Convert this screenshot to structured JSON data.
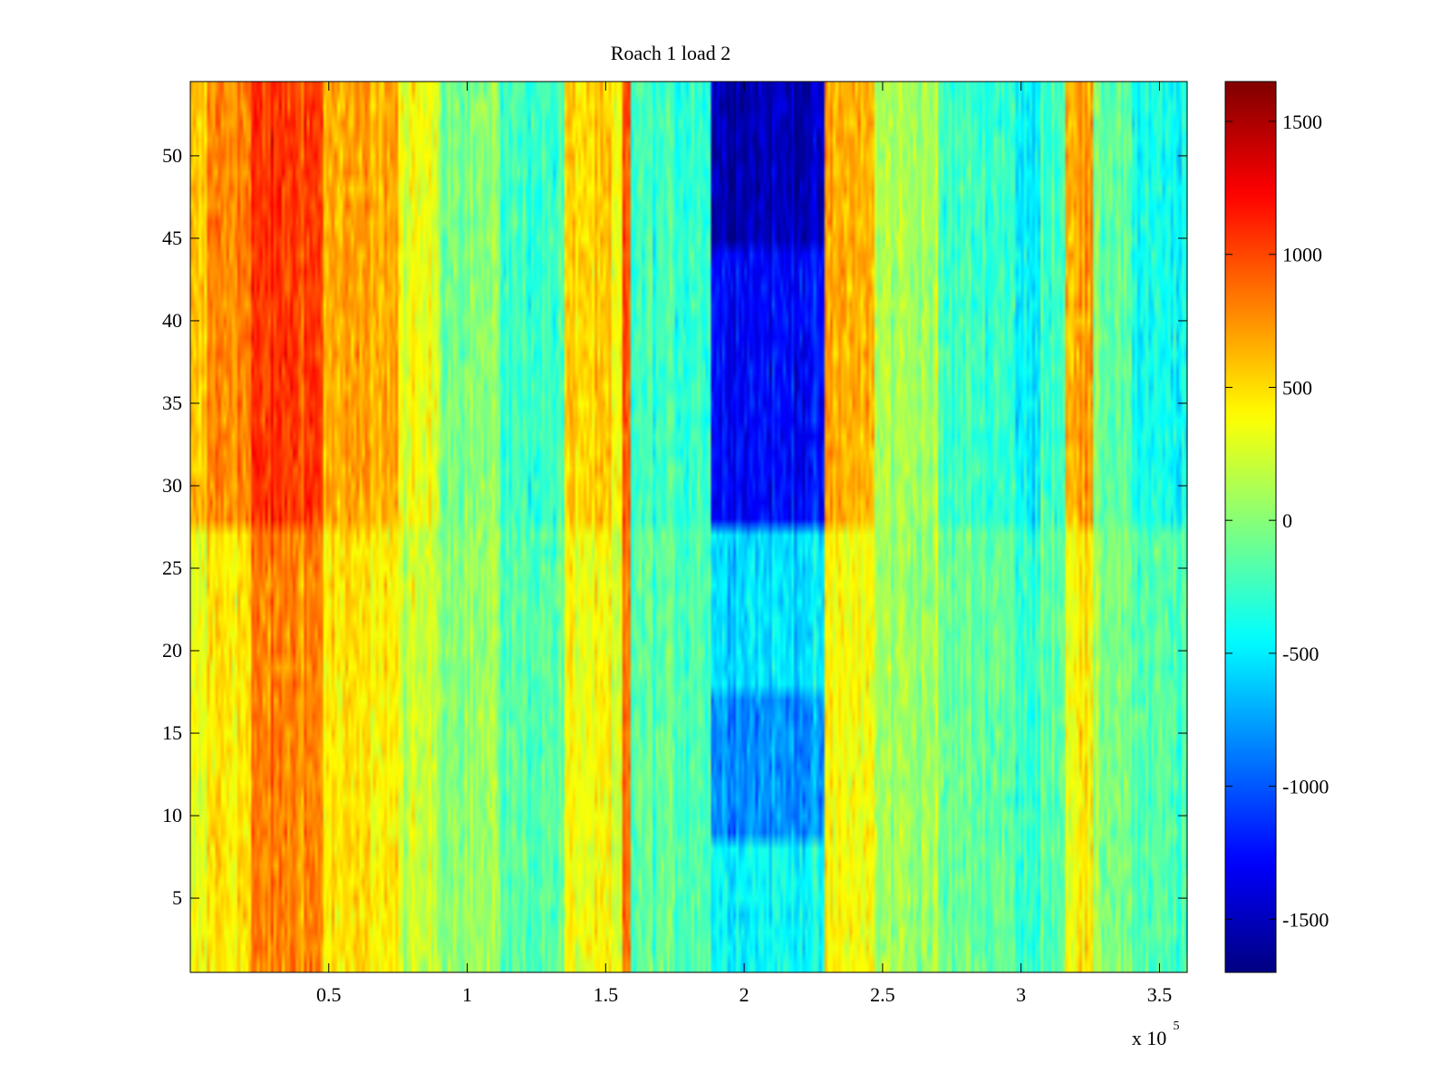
{
  "chart_data": {
    "type": "heatmap",
    "title": "Roach 1 load 2",
    "xlabel": "",
    "ylabel": "",
    "x_exponent_label": {
      "base": "x 10",
      "exponent": "5"
    },
    "xlim": [
      0,
      3.6
    ],
    "ylim": [
      0.5,
      54.5
    ],
    "x_ticks": [
      {
        "value": 0.5,
        "label": "0.5"
      },
      {
        "value": 1,
        "label": "1"
      },
      {
        "value": 1.5,
        "label": "1.5"
      },
      {
        "value": 2,
        "label": "2"
      },
      {
        "value": 2.5,
        "label": "2.5"
      },
      {
        "value": 3,
        "label": "3"
      },
      {
        "value": 3.5,
        "label": "3.5"
      }
    ],
    "y_ticks": [
      {
        "value": 5,
        "label": "5"
      },
      {
        "value": 10,
        "label": "10"
      },
      {
        "value": 15,
        "label": "15"
      },
      {
        "value": 20,
        "label": "20"
      },
      {
        "value": 25,
        "label": "25"
      },
      {
        "value": 30,
        "label": "30"
      },
      {
        "value": 35,
        "label": "35"
      },
      {
        "value": 40,
        "label": "40"
      },
      {
        "value": 45,
        "label": "45"
      },
      {
        "value": 50,
        "label": "50"
      }
    ],
    "rows": 54,
    "columns": 360,
    "colormap": "jet",
    "colorbar": {
      "min": -1700,
      "max": 1650,
      "ticks": [
        {
          "value": 1500,
          "label": "1500"
        },
        {
          "value": 1000,
          "label": "1000"
        },
        {
          "value": 500,
          "label": "500"
        },
        {
          "value": 0,
          "label": "0"
        },
        {
          "value": -500,
          "label": "-500"
        },
        {
          "value": -1000,
          "label": "-1000"
        },
        {
          "value": -1500,
          "label": "-1500"
        }
      ]
    },
    "vertical_bands": [
      {
        "x_start": 0.0,
        "x_end": 0.06,
        "low_rows_value": 280,
        "high_rows_value": 550
      },
      {
        "x_start": 0.06,
        "x_end": 0.22,
        "low_rows_value": 480,
        "high_rows_value": 800
      },
      {
        "x_start": 0.22,
        "x_end": 0.48,
        "low_rows_value": 800,
        "high_rows_value": 1050
      },
      {
        "x_start": 0.48,
        "x_end": 0.62,
        "low_rows_value": 450,
        "high_rows_value": 650
      },
      {
        "x_start": 0.62,
        "x_end": 0.75,
        "low_rows_value": 450,
        "high_rows_value": 680
      },
      {
        "x_start": 0.75,
        "x_end": 0.9,
        "low_rows_value": 200,
        "high_rows_value": 320
      },
      {
        "x_start": 0.9,
        "x_end": 1.12,
        "low_rows_value": 50,
        "high_rows_value": 0
      },
      {
        "x_start": 1.12,
        "x_end": 1.35,
        "low_rows_value": -150,
        "high_rows_value": -250
      },
      {
        "x_start": 1.35,
        "x_end": 1.52,
        "low_rows_value": 350,
        "high_rows_value": 520
      },
      {
        "x_start": 1.52,
        "x_end": 1.56,
        "low_rows_value": 200,
        "high_rows_value": 300
      },
      {
        "x_start": 1.56,
        "x_end": 1.59,
        "low_rows_value": 850,
        "high_rows_value": 950
      },
      {
        "x_start": 1.59,
        "x_end": 1.88,
        "low_rows_value": -150,
        "high_rows_value": -250
      },
      {
        "x_start": 1.88,
        "x_end": 2.29,
        "low_rows_value": -620,
        "high_rows_value": -1350
      },
      {
        "x_start": 2.29,
        "x_end": 2.47,
        "low_rows_value": 380,
        "high_rows_value": 650
      },
      {
        "x_start": 2.47,
        "x_end": 2.7,
        "low_rows_value": 80,
        "high_rows_value": 120
      },
      {
        "x_start": 2.7,
        "x_end": 2.98,
        "low_rows_value": -100,
        "high_rows_value": -250
      },
      {
        "x_start": 2.98,
        "x_end": 3.07,
        "low_rows_value": -300,
        "high_rows_value": -500
      },
      {
        "x_start": 3.07,
        "x_end": 3.16,
        "low_rows_value": -100,
        "high_rows_value": -200
      },
      {
        "x_start": 3.16,
        "x_end": 3.26,
        "low_rows_value": 420,
        "high_rows_value": 700
      },
      {
        "x_start": 3.26,
        "x_end": 3.4,
        "low_rows_value": 0,
        "high_rows_value": -100
      },
      {
        "x_start": 3.4,
        "x_end": 3.6,
        "low_rows_value": -200,
        "high_rows_value": -420
      }
    ],
    "row_breakpoint": 27,
    "notes": "Value at each cell = band value (low_rows_value for rows 1-27, high_rows_value for rows 28-54) plus noise; blue block at x 1.88-2.29 deepest near rows 45-54"
  }
}
